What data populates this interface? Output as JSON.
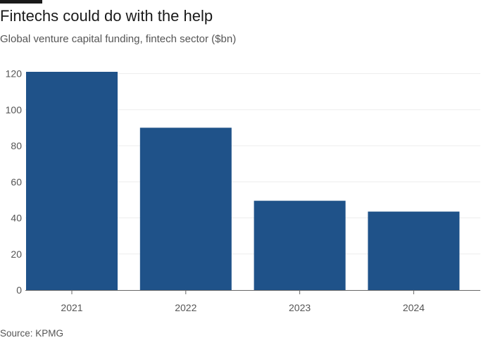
{
  "header": {
    "title": "Fintechs could do with the help",
    "subtitle": "Global venture capital funding, fintech sector ($bn)"
  },
  "footer": {
    "source": "Source: KPMG"
  },
  "colors": {
    "bar": "#1f5289",
    "grid": "#eeeeee",
    "axis": "#666666",
    "text": "#555555"
  },
  "chart_data": {
    "type": "bar",
    "categories": [
      "2021",
      "2022",
      "2023",
      "2024"
    ],
    "values": [
      121,
      90,
      49.5,
      43.5
    ],
    "yticks": [
      0,
      20,
      40,
      60,
      80,
      100,
      120
    ],
    "ylim": [
      0,
      121
    ],
    "grid": true,
    "title": "Fintechs could do with the help",
    "subtitle": "Global venture capital funding, fintech sector ($bn)",
    "xlabel": "",
    "ylabel": ""
  }
}
